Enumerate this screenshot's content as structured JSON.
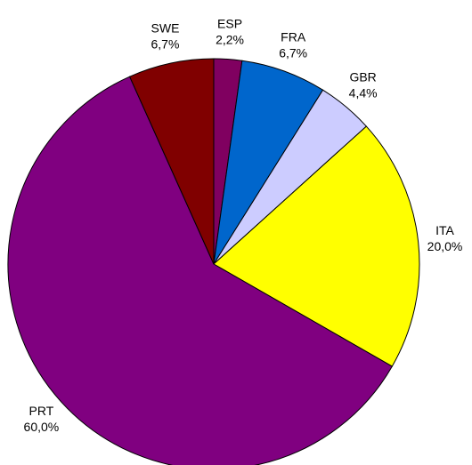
{
  "chart_data": {
    "type": "pie",
    "categories": [
      "ESP",
      "FRA",
      "GBR",
      "ITA",
      "PRT",
      "SWE"
    ],
    "values": [
      2.2,
      6.7,
      4.4,
      20.0,
      60.0,
      6.7
    ],
    "value_labels": [
      "2,2%",
      "6,7%",
      "4,4%",
      "20,0%",
      "60,0%",
      "6,7%"
    ],
    "colors": [
      "#800060",
      "#0066cc",
      "#ccccff",
      "#ffff00",
      "#800080",
      "#800000"
    ]
  }
}
